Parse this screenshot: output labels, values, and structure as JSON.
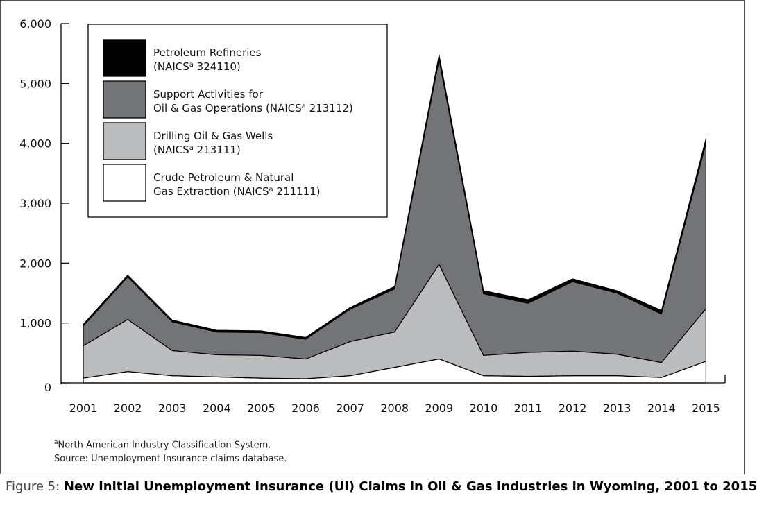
{
  "chart_data": {
    "type": "area",
    "stacked": true,
    "x": [
      "2001",
      "2002",
      "2003",
      "2004",
      "2005",
      "2006",
      "2007",
      "2008",
      "2009",
      "2010",
      "2011",
      "2012",
      "2013",
      "2014",
      "2015"
    ],
    "y_ticks": [
      "0",
      "1,000",
      "2,000",
      "3,000",
      "4,000",
      "5,000",
      "6,000"
    ],
    "ylim": [
      0,
      6000
    ],
    "grid": false,
    "legend_position": "top-left",
    "series": [
      {
        "name_lines": [
          "Crude Petroleum & Natural",
          "Gas Extraction (NAICS",
          "a",
          " 211111)"
        ],
        "color": "#ffffff",
        "values": [
          80,
          190,
          120,
          100,
          80,
          70,
          120,
          260,
          400,
          120,
          110,
          120,
          120,
          90,
          360
        ]
      },
      {
        "name_lines": [
          "Drilling Oil & Gas Wells",
          "(NAICS",
          "a",
          " 213111)"
        ],
        "color": "#bbbcbe",
        "values": [
          540,
          870,
          420,
          370,
          380,
          330,
          570,
          590,
          1580,
          340,
          400,
          410,
          360,
          250,
          880
        ]
      },
      {
        "name_lines": [
          "Support Activities for",
          "Oil & Gas Operations (NAICS",
          "a",
          " 213112)"
        ],
        "color": "#737478",
        "values": [
          330,
          710,
          480,
          380,
          380,
          330,
          540,
          720,
          3420,
          1030,
          820,
          1160,
          1020,
          810,
          2760
        ]
      },
      {
        "name_lines": [
          "Petroleum Refineries",
          "(NAICS",
          "a",
          " 324110)"
        ],
        "color": "#000000",
        "values": [
          30,
          30,
          30,
          30,
          30,
          30,
          30,
          40,
          80,
          50,
          60,
          50,
          40,
          60,
          80
        ]
      }
    ]
  },
  "footnotes": {
    "naics_sup": "a",
    "naics_text": "North American Industry Classification System.",
    "source": "Source: Unemployment Insurance claims database."
  },
  "caption": {
    "prefix": "Figure 5: ",
    "title": "New Initial Unemployment Insurance (UI) Claims in Oil & Gas Industries in Wyoming, 2001 to 2015"
  }
}
